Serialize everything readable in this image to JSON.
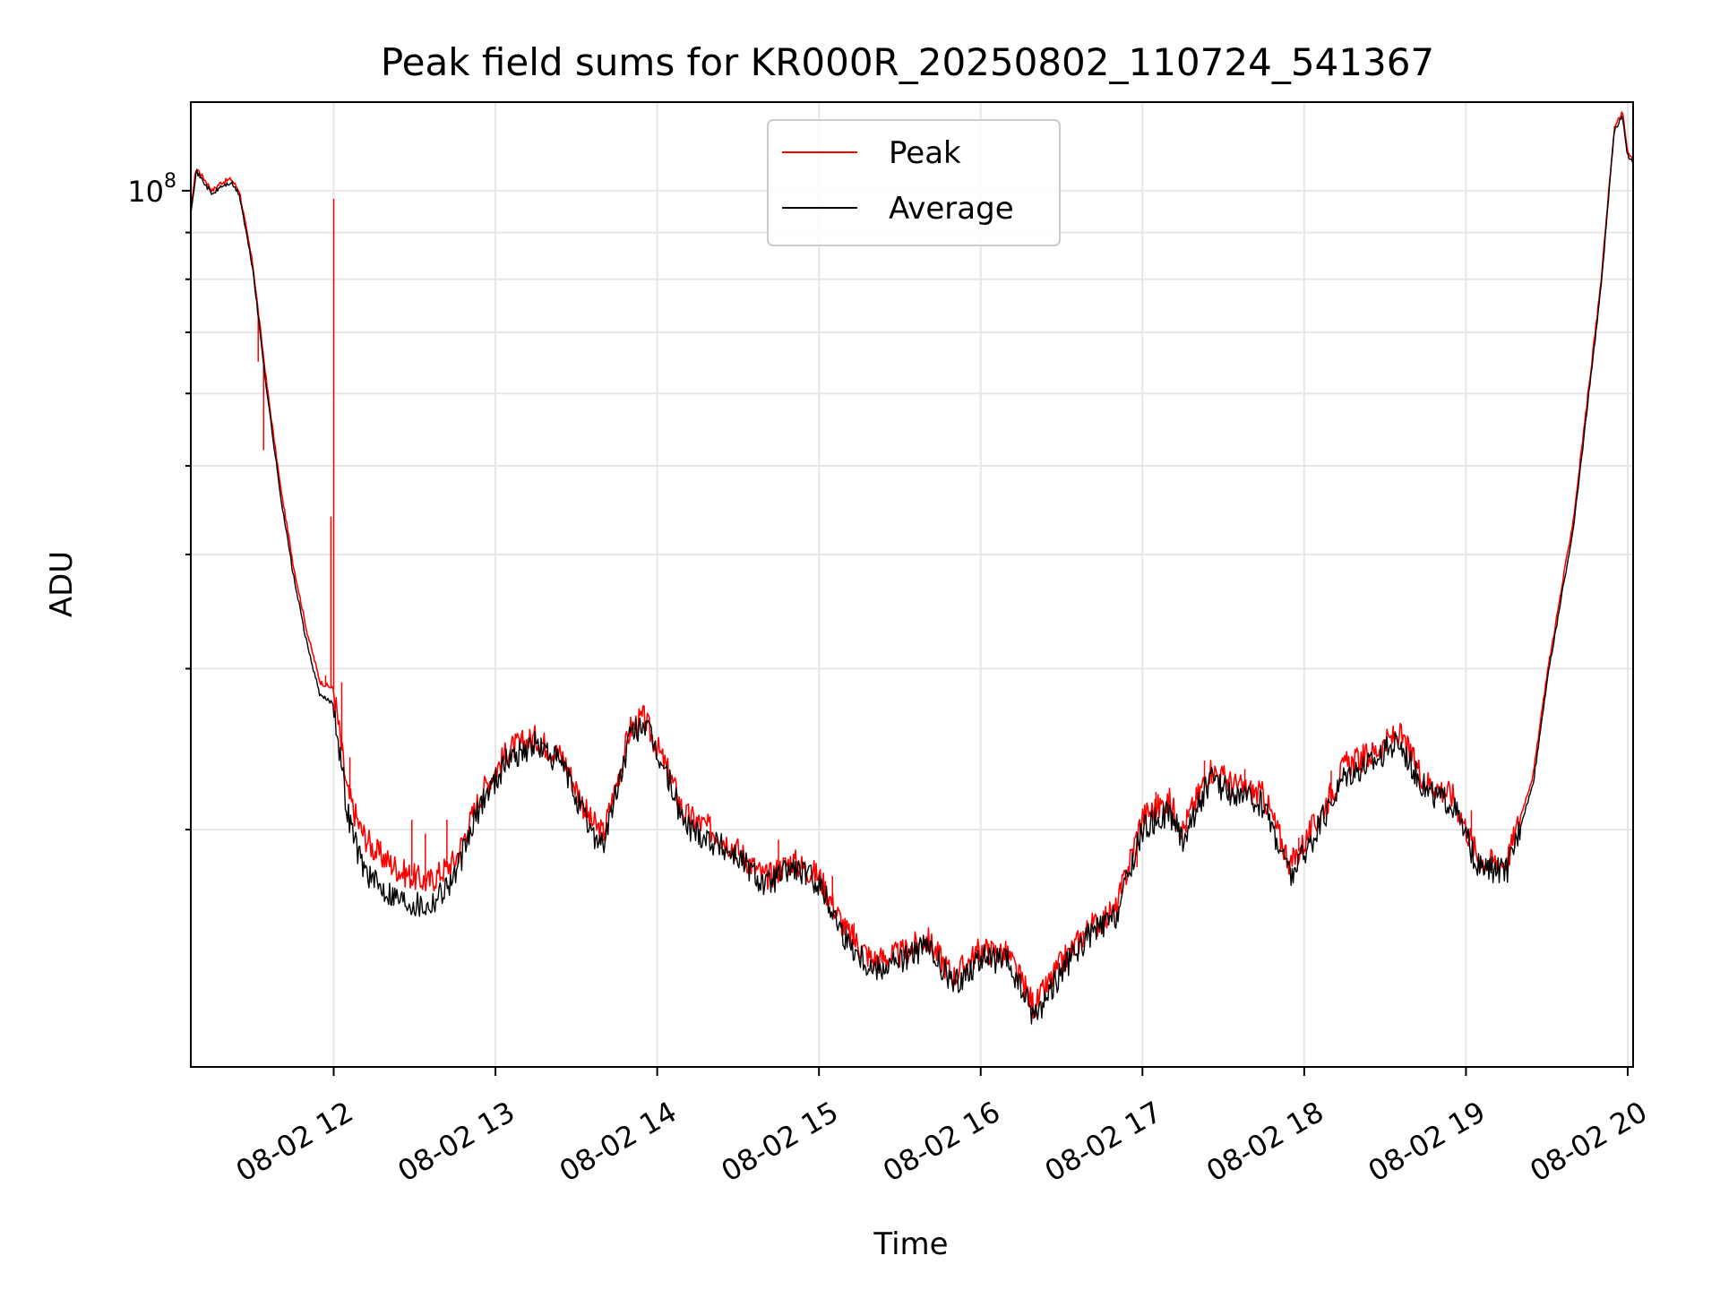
{
  "chart_data": {
    "type": "line",
    "title": "Peak field sums for KR000R_20250802_110724_541367",
    "xlabel": "Time",
    "ylabel": "ADU",
    "yscale": "log",
    "ylim": [
      11000000,
      125000000
    ],
    "xlim": [
      "08-02 11:07",
      "08-02 20:02"
    ],
    "grid": true,
    "legend": "upper-center",
    "x_tick_labels": [
      "08-02 12",
      "08-02 13",
      "08-02 14",
      "08-02 15",
      "08-02 16",
      "08-02 17",
      "08-02 18",
      "08-02 19",
      "08-02 20"
    ],
    "x_tick_values": [
      "12:00",
      "13:00",
      "14:00",
      "15:00",
      "16:00",
      "17:00",
      "18:00",
      "19:00",
      "20:00"
    ],
    "y_tick_labels": [
      {
        "value": 100000000,
        "base": "10",
        "exp": "8"
      }
    ],
    "series": [
      {
        "name": "Peak",
        "color": "#ff0000",
        "points": [
          [
            "11:07",
            96000000
          ],
          [
            "11:09",
            106000000
          ],
          [
            "11:12",
            103000000
          ],
          [
            "11:15",
            100000000
          ],
          [
            "11:18",
            102000000
          ],
          [
            "11:22",
            103000000
          ],
          [
            "11:25",
            100000000
          ],
          [
            "11:30",
            83000000
          ],
          [
            "11:35",
            62000000
          ],
          [
            "11:40",
            48000000
          ],
          [
            "11:45",
            39000000
          ],
          [
            "11:50",
            33000000
          ],
          [
            "11:55",
            29000000
          ],
          [
            "12:00",
            28500000
          ],
          [
            "12:05",
            22000000
          ],
          [
            "12:10",
            20000000
          ],
          [
            "12:15",
            19000000
          ],
          [
            "12:25",
            18000000
          ],
          [
            "12:35",
            17500000
          ],
          [
            "12:45",
            18500000
          ],
          [
            "12:55",
            22000000
          ],
          [
            "13:05",
            24500000
          ],
          [
            "13:15",
            25200000
          ],
          [
            "13:25",
            24000000
          ],
          [
            "13:35",
            20500000
          ],
          [
            "13:40",
            19800000
          ],
          [
            "13:45",
            22500000
          ],
          [
            "13:50",
            25800000
          ],
          [
            "13:55",
            26500000
          ],
          [
            "14:05",
            22800000
          ],
          [
            "14:10",
            20800000
          ],
          [
            "14:20",
            20000000
          ],
          [
            "14:30",
            19000000
          ],
          [
            "14:40",
            17700000
          ],
          [
            "14:50",
            18500000
          ],
          [
            "15:00",
            17800000
          ],
          [
            "15:10",
            15500000
          ],
          [
            "15:20",
            14400000
          ],
          [
            "15:30",
            14600000
          ],
          [
            "15:40",
            15200000
          ],
          [
            "15:50",
            13800000
          ],
          [
            "16:00",
            14800000
          ],
          [
            "16:10",
            14600000
          ],
          [
            "16:20",
            12800000
          ],
          [
            "16:30",
            14300000
          ],
          [
            "16:40",
            15600000
          ],
          [
            "16:50",
            16300000
          ],
          [
            "17:00",
            20700000
          ],
          [
            "17:10",
            21500000
          ],
          [
            "17:15",
            20000000
          ],
          [
            "17:25",
            23300000
          ],
          [
            "17:35",
            22300000
          ],
          [
            "17:45",
            21800000
          ],
          [
            "17:55",
            18300000
          ],
          [
            "18:05",
            20500000
          ],
          [
            "18:15",
            23500000
          ],
          [
            "18:25",
            24200000
          ],
          [
            "18:35",
            25500000
          ],
          [
            "18:45",
            22600000
          ],
          [
            "18:55",
            21800000
          ],
          [
            "19:05",
            18500000
          ],
          [
            "19:15",
            18400000
          ],
          [
            "19:25",
            23000000
          ],
          [
            "19:30",
            29500000
          ],
          [
            "19:40",
            44000000
          ],
          [
            "19:50",
            79000000
          ],
          [
            "19:55",
            117000000
          ],
          [
            "19:58",
            122000000
          ],
          [
            "20:00",
            110000000
          ],
          [
            "20:02",
            108000000
          ]
        ],
        "spikes": [
          [
            "11:32",
            65000000
          ],
          [
            "11:34",
            52000000
          ],
          [
            "11:57",
            29500000
          ],
          [
            "11:59",
            44000000
          ],
          [
            "12:00",
            98000000
          ],
          [
            "12:03",
            29000000
          ],
          [
            "12:06",
            24000000
          ],
          [
            "12:29",
            20500000
          ],
          [
            "12:34",
            19800000
          ],
          [
            "12:42",
            20500000
          ],
          [
            "13:10",
            25500000
          ],
          [
            "13:52",
            26300000
          ],
          [
            "14:45",
            19500000
          ],
          [
            "14:55",
            18300000
          ],
          [
            "15:05",
            17800000
          ],
          [
            "15:13",
            15800000
          ],
          [
            "16:03",
            15000000
          ],
          [
            "16:38",
            15500000
          ],
          [
            "16:58",
            18200000
          ],
          [
            "17:05",
            22000000
          ],
          [
            "17:23",
            23800000
          ],
          [
            "17:38",
            23300000
          ],
          [
            "17:58",
            19600000
          ],
          [
            "18:10",
            23200000
          ],
          [
            "19:02",
            21000000
          ],
          [
            "19:16",
            19300000
          ]
        ]
      },
      {
        "name": "Average",
        "color": "#000000",
        "points": [
          [
            "11:07",
            95000000
          ],
          [
            "11:09",
            105000000
          ],
          [
            "11:12",
            102000000
          ],
          [
            "11:15",
            99000000
          ],
          [
            "11:18",
            101000000
          ],
          [
            "11:22",
            102000000
          ],
          [
            "11:25",
            99000000
          ],
          [
            "11:30",
            82000000
          ],
          [
            "11:35",
            61000000
          ],
          [
            "11:40",
            47000000
          ],
          [
            "11:45",
            38000000
          ],
          [
            "11:50",
            32000000
          ],
          [
            "11:55",
            28000000
          ],
          [
            "12:00",
            27500000
          ],
          [
            "12:05",
            21000000
          ],
          [
            "12:10",
            18500000
          ],
          [
            "12:15",
            17500000
          ],
          [
            "12:25",
            16800000
          ],
          [
            "12:35",
            16500000
          ],
          [
            "12:45",
            17800000
          ],
          [
            "12:55",
            21500000
          ],
          [
            "13:05",
            24000000
          ],
          [
            "13:15",
            24800000
          ],
          [
            "13:25",
            23500000
          ],
          [
            "13:35",
            20000000
          ],
          [
            "13:40",
            19300000
          ],
          [
            "13:45",
            22000000
          ],
          [
            "13:50",
            25300000
          ],
          [
            "13:55",
            26200000
          ],
          [
            "14:05",
            22400000
          ],
          [
            "14:10",
            20300000
          ],
          [
            "14:20",
            19500000
          ],
          [
            "14:30",
            18700000
          ],
          [
            "14:40",
            17400000
          ],
          [
            "14:50",
            18200000
          ],
          [
            "15:00",
            17500000
          ],
          [
            "15:10",
            15200000
          ],
          [
            "15:20",
            14100000
          ],
          [
            "15:30",
            14400000
          ],
          [
            "15:40",
            14900000
          ],
          [
            "15:50",
            13500000
          ],
          [
            "16:00",
            14500000
          ],
          [
            "16:10",
            14300000
          ],
          [
            "16:20",
            12500000
          ],
          [
            "16:30",
            14000000
          ],
          [
            "16:40",
            15300000
          ],
          [
            "16:50",
            16000000
          ],
          [
            "17:00",
            20000000
          ],
          [
            "17:10",
            20900000
          ],
          [
            "17:15",
            19500000
          ],
          [
            "17:25",
            22700000
          ],
          [
            "17:35",
            21800000
          ],
          [
            "17:45",
            21300000
          ],
          [
            "17:55",
            17800000
          ],
          [
            "18:05",
            20000000
          ],
          [
            "18:15",
            23000000
          ],
          [
            "18:25",
            23700000
          ],
          [
            "18:35",
            25000000
          ],
          [
            "18:45",
            22100000
          ],
          [
            "18:55",
            21300000
          ],
          [
            "19:05",
            18100000
          ],
          [
            "19:15",
            18000000
          ],
          [
            "19:25",
            22500000
          ],
          [
            "19:30",
            29000000
          ],
          [
            "19:40",
            43000000
          ],
          [
            "19:50",
            78000000
          ],
          [
            "19:55",
            116000000
          ],
          [
            "19:58",
            121000000
          ],
          [
            "20:00",
            109000000
          ],
          [
            "20:02",
            107000000
          ]
        ]
      }
    ]
  }
}
